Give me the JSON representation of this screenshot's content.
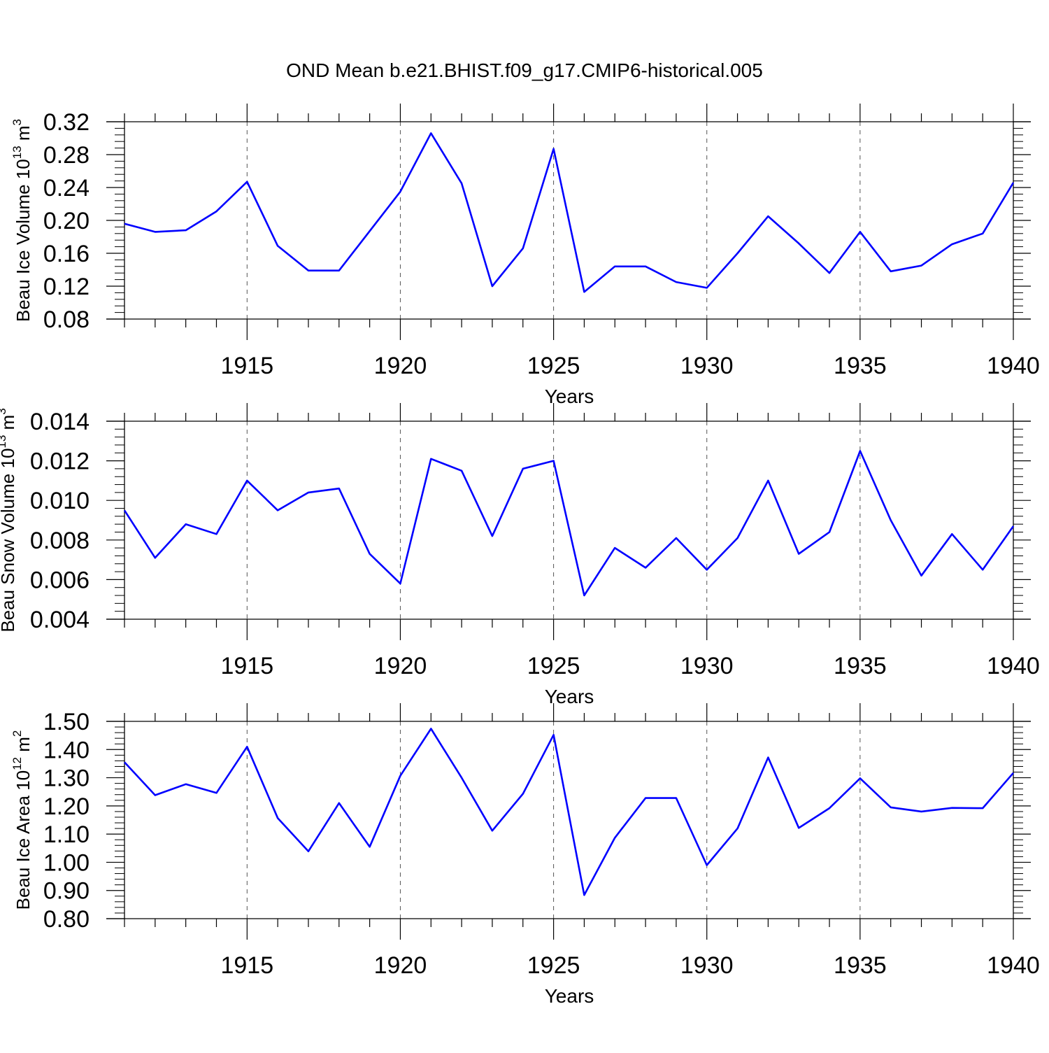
{
  "chart_data": {
    "title": "OND Mean b.e21.BHIST.f09_g17.CMIP6-historical.005",
    "series_color": "#0000ff",
    "grid_color": "#555555",
    "panels": [
      {
        "type": "line",
        "ylabel_main": "Beau Ice Volume 10",
        "ylabel_exp": "13",
        "ylabel_unit": " m",
        "ylabel_unit_exp": "3",
        "xlabel": "Years",
        "x": [
          1911,
          1912,
          1913,
          1914,
          1915,
          1916,
          1917,
          1918,
          1919,
          1920,
          1921,
          1922,
          1923,
          1924,
          1925,
          1926,
          1927,
          1928,
          1929,
          1930,
          1931,
          1932,
          1933,
          1934,
          1935,
          1936,
          1937,
          1938,
          1939,
          1940
        ],
        "values": [
          0.196,
          0.186,
          0.188,
          0.211,
          0.247,
          0.169,
          0.139,
          0.139,
          0.187,
          0.235,
          0.306,
          0.245,
          0.12,
          0.166,
          0.287,
          0.113,
          0.144,
          0.144,
          0.125,
          0.118,
          0.16,
          0.205,
          0.172,
          0.136,
          0.186,
          0.138,
          0.145,
          0.171,
          0.184,
          0.246
        ],
        "ylim": [
          0.08,
          0.32
        ],
        "yticks": [
          0.08,
          0.12,
          0.16,
          0.2,
          0.24,
          0.28,
          0.32
        ],
        "ytick_labels": [
          "0.08",
          "0.12",
          "0.16",
          "0.20",
          "0.24",
          "0.28",
          "0.32"
        ],
        "xlim": [
          1911,
          1940
        ],
        "xticks": [
          1915,
          1920,
          1925,
          1930,
          1935,
          1940
        ],
        "xtick_labels": [
          "1915",
          "1920",
          "1925",
          "1930",
          "1935",
          "1940"
        ]
      },
      {
        "type": "line",
        "ylabel_main": "Beau Snow Volume 10",
        "ylabel_exp": "13",
        "ylabel_unit": " m",
        "ylabel_unit_exp": "3",
        "xlabel": "Years",
        "x": [
          1911,
          1912,
          1913,
          1914,
          1915,
          1916,
          1917,
          1918,
          1919,
          1920,
          1921,
          1922,
          1923,
          1924,
          1925,
          1926,
          1927,
          1928,
          1929,
          1930,
          1931,
          1932,
          1933,
          1934,
          1935,
          1936,
          1937,
          1938,
          1939,
          1940
        ],
        "values": [
          0.0095,
          0.0071,
          0.0088,
          0.0083,
          0.011,
          0.0095,
          0.0104,
          0.0106,
          0.0073,
          0.0058,
          0.0121,
          0.0115,
          0.0082,
          0.0116,
          0.012,
          0.0052,
          0.0076,
          0.0066,
          0.0081,
          0.0065,
          0.0081,
          0.011,
          0.0073,
          0.0084,
          0.0125,
          0.009,
          0.0062,
          0.0083,
          0.0065,
          0.0087
        ],
        "ylim": [
          0.004,
          0.014
        ],
        "yticks": [
          0.004,
          0.006,
          0.008,
          0.01,
          0.012,
          0.014
        ],
        "ytick_labels": [
          "0.004",
          "0.006",
          "0.008",
          "0.010",
          "0.012",
          "0.014"
        ],
        "xlim": [
          1911,
          1940
        ],
        "xticks": [
          1915,
          1920,
          1925,
          1930,
          1935,
          1940
        ],
        "xtick_labels": [
          "1915",
          "1920",
          "1925",
          "1930",
          "1935",
          "1940"
        ]
      },
      {
        "type": "line",
        "ylabel_main": "Beau Ice Area 10",
        "ylabel_exp": "12",
        "ylabel_unit": " m",
        "ylabel_unit_exp": "2",
        "xlabel": "Years",
        "x": [
          1911,
          1912,
          1913,
          1914,
          1915,
          1916,
          1917,
          1918,
          1919,
          1920,
          1921,
          1922,
          1923,
          1924,
          1925,
          1926,
          1927,
          1928,
          1929,
          1930,
          1931,
          1932,
          1933,
          1934,
          1935,
          1936,
          1937,
          1938,
          1939,
          1940
        ],
        "values": [
          1.355,
          1.238,
          1.277,
          1.246,
          1.41,
          1.157,
          1.039,
          1.21,
          1.055,
          1.307,
          1.474,
          1.3,
          1.112,
          1.243,
          1.452,
          0.884,
          1.087,
          1.228,
          1.228,
          0.99,
          1.12,
          1.372,
          1.122,
          1.192,
          1.298,
          1.195,
          1.18,
          1.193,
          1.192,
          1.317
        ],
        "ylim": [
          0.8,
          1.5
        ],
        "yticks": [
          0.8,
          0.9,
          1.0,
          1.1,
          1.2,
          1.3,
          1.4,
          1.5
        ],
        "ytick_labels": [
          "0.80",
          "0.90",
          "1.00",
          "1.10",
          "1.20",
          "1.30",
          "1.40",
          "1.50"
        ],
        "xlim": [
          1911,
          1940
        ],
        "xticks": [
          1915,
          1920,
          1925,
          1930,
          1935,
          1940
        ],
        "xtick_labels": [
          "1915",
          "1920",
          "1925",
          "1930",
          "1935",
          "1940"
        ]
      }
    ]
  }
}
